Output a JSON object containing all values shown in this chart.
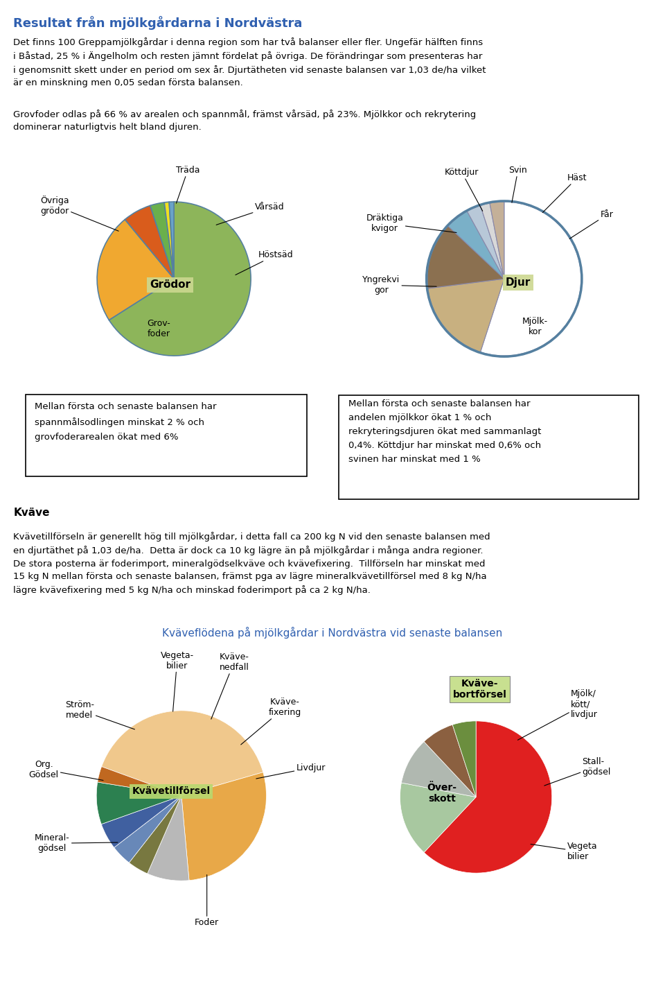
{
  "title": "Resultat från mjölkgårdarna i Nordvästra",
  "intro_text": "Det finns 100 Greppamjölkgårdar i denna region som har två balanser eller fler. Ungefär hälften finns\ni Båstad, 25 % i Ängelholm och resten jämnt fördelat på övriga. De förändringar som presenteras har\ni genomsnitt skett under en period om sex år. Djurtätheten vid senaste balansen var 1,03 de/ha vilket\när en minskning men 0,05 sedan första balansen.",
  "intro_text2": "Grovfoder odlas på 66 % av arealen och spannmål, främst vårsäd, på 23%. Mjölkkor och rekrytering\ndominerar naturligtvis helt bland djuren.",
  "grodor_sizes": [
    66,
    23,
    6,
    3,
    1,
    1
  ],
  "grodor_colors": [
    "#8db55a",
    "#f0a830",
    "#d95c1c",
    "#6ab04c",
    "#f0e020",
    "#6aa3c8"
  ],
  "djur_sizes": [
    55,
    18,
    14,
    5,
    3,
    2,
    3
  ],
  "djur_colors": [
    "#ffffff",
    "#c8b080",
    "#8b7050",
    "#7ab0c8",
    "#b8c8d8",
    "#d8d8d8",
    "#c4b098"
  ],
  "box1_text": "Mellan första och senaste balansen har\nspannmålsodlingen minskat 2 % och\ngrovfoderarealen ökat med 6%",
  "box2_text": "Mellan första och senaste balansen har\nandelen mjölkkor ökat 1 % och\nrekryteringsdjuren ökat med sammanlagt\n0,4%. Köttdjur har minskat med 0,6% och\nsvinen har minskat med 1 %",
  "kvaeve_title": "Kväve",
  "kvaeve_text": "Kvävetillförseln är generellt hög till mjölkgårdar, i detta fall ca 200 kg N vid den senaste balansen med\nen djurtäthet på 1,03 de/ha.  Detta är dock ca 10 kg lägre än på mjölkgårdar i många andra regioner.\nDe stora posterna är foderimport, mineralgödselkväve och kvävefixering.  Tillförseln har minskat med\n15 kg N mellan första och senaste balansen, främst pga av lägre mineralkvävetillförsel med 8 kg N/ha\nlägre kvävefixering med 5 kg N/ha och minskad foderimport på ca 2 kg N/ha.",
  "floden_title": "Kväveflödena på mjölkgårdar i Nordvästra vid senaste balansen",
  "till_sizes": [
    40,
    28,
    8,
    4,
    4,
    5,
    8,
    3
  ],
  "till_colors": [
    "#f0c88c",
    "#e8a848",
    "#b8b8b8",
    "#787840",
    "#6888b8",
    "#4060a0",
    "#2c8050",
    "#c06820"
  ],
  "till_labels": [
    "Foder",
    "Mineral-\ngödsel",
    "Org.\nGödsel",
    "Ström-\nmedel",
    "Vegeta-\nbilier",
    "Kväve-\nnedfall",
    "Kväve-\nfixering",
    "Livdjur"
  ],
  "bort_sizes": [
    62,
    16,
    10,
    7,
    5
  ],
  "bort_colors": [
    "#e02020",
    "#a8c8a0",
    "#b0b8b0",
    "#8b6040",
    "#6b8e3e"
  ],
  "bort_labels": [
    "Över-\nskott",
    "Mjölk/\nkött/\nlivdjur",
    "Stall-\ngödsel",
    "Vegeta\nbilier",
    "Kväve-\nbortförsel"
  ]
}
